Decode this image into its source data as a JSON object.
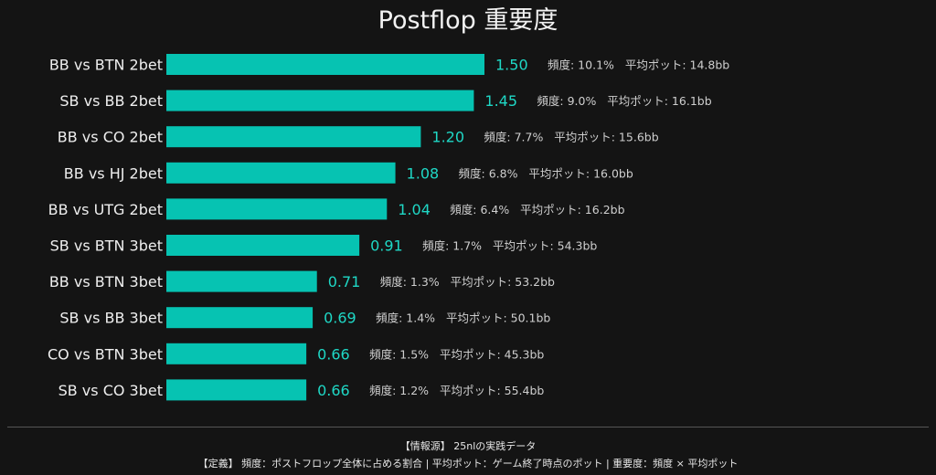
{
  "chart_data": {
    "type": "bar",
    "orientation": "horizontal",
    "title": "Postflop 重要度",
    "categories": [
      "BB vs BTN 2bet",
      "SB vs BB 2bet",
      "BB vs CO 2bet",
      "BB vs HJ 2bet",
      "BB vs UTG 2bet",
      "SB vs BTN 3bet",
      "BB vs BTN 3bet",
      "SB vs BB 3bet",
      "CO vs BTN 3bet",
      "SB vs CO 3bet"
    ],
    "values": [
      1.5,
      1.45,
      1.2,
      1.08,
      1.04,
      0.91,
      0.71,
      0.69,
      0.66,
      0.66
    ],
    "value_labels": [
      "1.50",
      "1.45",
      "1.20",
      "1.08",
      "1.04",
      "0.91",
      "0.71",
      "0.69",
      "0.66",
      "0.66"
    ],
    "annotations": [
      "頻度: 10.1%   平均ポット: 14.8bb",
      "頻度: 9.0%   平均ポット: 16.1bb",
      "頻度: 7.7%   平均ポット: 15.6bb",
      "頻度: 6.8%   平均ポット: 16.0bb",
      "頻度: 6.4%   平均ポット: 16.2bb",
      "頻度: 1.7%   平均ポット: 54.3bb",
      "頻度: 1.3%   平均ポット: 53.2bb",
      "頻度: 1.4%   平均ポット: 50.1bb",
      "頻度: 1.5%   平均ポット: 45.3bb",
      "頻度: 1.2%   平均ポット: 55.4bb"
    ],
    "xlim": [
      0,
      1.6
    ],
    "grid": false,
    "bar_color": "#06c3b2",
    "value_color": "#1fd8c6"
  },
  "footer": {
    "source": "【情報源】 25nlの実践データ",
    "definition": "【定義】 頻度：ポストフロップ全体に占める割合 | 平均ポット：ゲーム終了時点のポット | 重要度：頻度 × 平均ポット"
  }
}
